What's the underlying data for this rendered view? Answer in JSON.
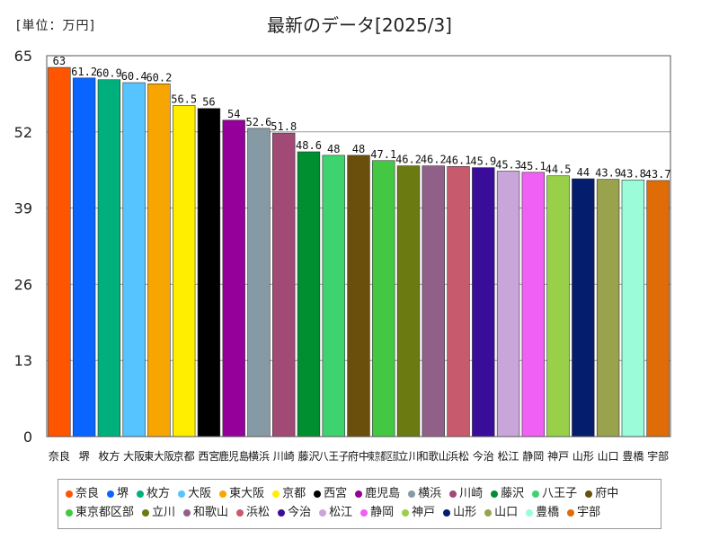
{
  "unit_label": "[単位：万円]",
  "chart_data": {
    "type": "bar",
    "title": "最新のデータ[2025/3]",
    "xlabel": "",
    "ylabel": "万円",
    "ylim": [
      0,
      65
    ],
    "yticks": [
      0,
      13,
      26,
      39,
      52,
      65
    ],
    "grid": true,
    "legend_position": "bottom",
    "categories": [
      "奈良",
      "堺",
      "枚方",
      "大阪",
      "東大阪",
      "京都",
      "西宮",
      "鹿児島",
      "横浜",
      "川崎",
      "藤沢",
      "八王子",
      "府中",
      "東京都区部",
      "立川",
      "和歌山",
      "浜松",
      "今治",
      "松江",
      "静岡",
      "神戸",
      "山形",
      "山口",
      "豊橋",
      "宇部"
    ],
    "values": [
      63,
      61.2,
      60.9,
      60.4,
      60.2,
      56.5,
      56,
      54,
      52.6,
      51.8,
      48.6,
      48,
      48,
      47.1,
      46.2,
      46.2,
      46.1,
      45.9,
      45.3,
      45.1,
      44.5,
      44,
      43.9,
      43.8,
      43.7
    ],
    "value_labels": [
      "63",
      "61.2",
      "60.9",
      "60.4",
      "60.2",
      "56.5",
      "56",
      "54",
      "52.6",
      "51.8",
      "48.6",
      "48",
      "48",
      "47.1",
      "46.2",
      "46.2",
      "46.1",
      "45.9",
      "45.3",
      "45.1",
      "44.5",
      "44",
      "43.9",
      "43.8",
      "43.7"
    ],
    "colors": [
      "#ff5500",
      "#0a64ff",
      "#00b07c",
      "#55c4ff",
      "#f7a500",
      "#ffee00",
      "#000000",
      "#95009a",
      "#869aa6",
      "#a14a76",
      "#008f30",
      "#3dd470",
      "#6a4e0b",
      "#44c844",
      "#6c7a12",
      "#916089",
      "#c85a6e",
      "#3a0c9a",
      "#c8a6da",
      "#f060f4",
      "#98d04a",
      "#051d6d",
      "#99a34e",
      "#9afcd8",
      "#e06c08"
    ]
  }
}
